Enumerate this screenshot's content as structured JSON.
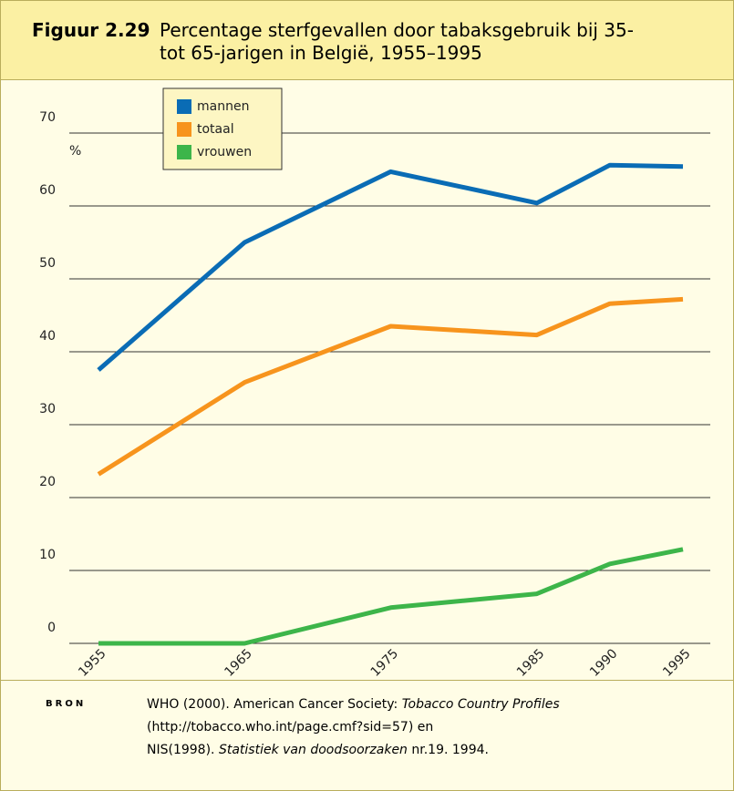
{
  "chart_data": {
    "type": "line",
    "title_label": "Figuur 2.29",
    "title": "Percentage sterfgevallen door tabaksgebruik bij 35- tot 65-jarigen in België, 1955–1995",
    "y_unit_label": "%",
    "x": [
      1955,
      1965,
      1975,
      1985,
      1990,
      1995
    ],
    "xlim": [
      1953,
      1997
    ],
    "ylim": [
      0,
      70
    ],
    "yticks": [
      0,
      10,
      20,
      30,
      40,
      50,
      60,
      70
    ],
    "grid": true,
    "legend": "top-left",
    "series": [
      {
        "name": "mannen",
        "color": "#0a6cb5",
        "values": [
          37.5,
          55,
          64.7,
          60.4,
          65.6,
          65.4
        ]
      },
      {
        "name": "totaal",
        "color": "#f7941d",
        "values": [
          23.2,
          35.8,
          43.5,
          42.3,
          46.6,
          47.2
        ]
      },
      {
        "name": "vrouwen",
        "color": "#3db54a",
        "values": [
          0,
          0,
          4.9,
          6.8,
          10.9,
          12.9
        ]
      }
    ]
  },
  "source": {
    "label": "BRON",
    "lines": [
      [
        {
          "text": "WHO (2000). American Cancer Society: "
        },
        {
          "text": "Tobacco Country Profiles",
          "italic": true
        }
      ],
      [
        {
          "text": "(http://tobacco.who.int/page.cmf?sid=57) en"
        }
      ],
      [
        {
          "text": "NIS(1998). "
        },
        {
          "text": "Statistiek van doodsoorzaken",
          "italic": true
        },
        {
          "text": " nr.19. 1994."
        }
      ]
    ]
  }
}
